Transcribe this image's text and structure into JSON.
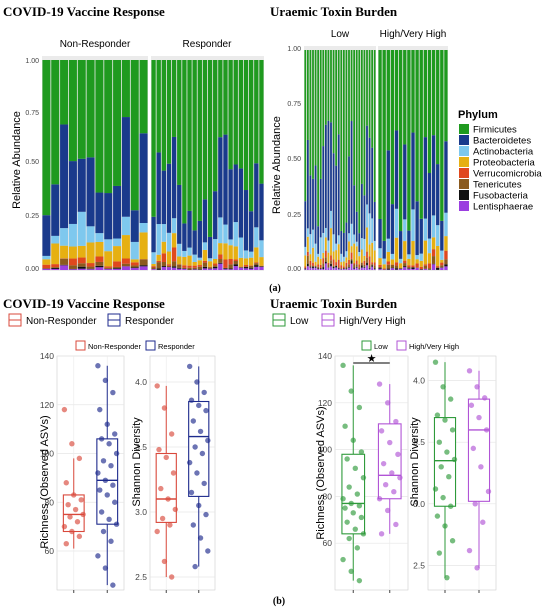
{
  "panel_a": {
    "left_title": "COVID-19 Vaccine Response",
    "right_title": "Uraemic Toxin Burden",
    "caption": "(a)",
    "ylabel": "Relative Abundance",
    "left_facets": [
      "Non-Responder",
      "Responder"
    ],
    "right_facets": [
      "Low",
      "High/Very High"
    ],
    "left_yticks": [
      "0.00",
      "0.25",
      "0.50",
      "0.75",
      "1.00"
    ],
    "right_yticks": [
      "0.00",
      "0.25",
      "0.50",
      "0.75",
      "1.00"
    ],
    "legend_title": "Phylum"
  },
  "panel_b": {
    "left_title": "COVID-19 Vaccine Response",
    "right_title": "Uraemic Toxin Burden",
    "caption": "(b)",
    "left_legend": [
      "Non-Responder",
      "Responder"
    ],
    "right_legend": [
      "Low",
      "High/Very High"
    ],
    "richness_label": "Richness (Observed ASVs)",
    "shannon_label": "Shannon Diversity",
    "richness_ticks": [
      "60",
      "80",
      "100",
      "120",
      "140"
    ],
    "shannon_ticks": [
      "2.5",
      "3.0",
      "3.5",
      "4.0"
    ],
    "star": "★"
  },
  "colors": {
    "non_responder": "#d9483b",
    "responder": "#1d2a8c",
    "low": "#2e9a3a",
    "high": "#b154d6"
  },
  "chart_data": [
    {
      "type": "bar",
      "stacked": true,
      "title": "COVID-19 Vaccine Response",
      "ylabel": "Relative Abundance",
      "ylim": [
        0,
        1
      ],
      "facets": [
        "Non-Responder",
        "Responder"
      ],
      "bars_per_facet": [
        12,
        22
      ],
      "series": [
        {
          "name": "Firmicutes",
          "color": "#1f9a1f"
        },
        {
          "name": "Bacteroidetes",
          "color": "#1a3a8c"
        },
        {
          "name": "Actinobacteria",
          "color": "#7ec8ee"
        },
        {
          "name": "Proteobacteria",
          "color": "#e6b012"
        },
        {
          "name": "Verrucomicrobia",
          "color": "#e0481e"
        },
        {
          "name": "Tenericutes",
          "color": "#8b5a1e"
        },
        {
          "name": "Fusobacteria",
          "color": "#111111"
        },
        {
          "name": "Lentisphaerae",
          "color": "#9b3fe0"
        }
      ],
      "legend": "right"
    },
    {
      "type": "bar",
      "stacked": true,
      "title": "Uraemic Toxin Burden",
      "ylabel": "Relative Abundance",
      "ylim": [
        0,
        1
      ],
      "facets": [
        "Low",
        "High/Very High"
      ],
      "bars_per_facet": [
        28,
        17
      ]
    },
    {
      "type": "boxplot",
      "title": "COVID-19 Vaccine Response",
      "ylabel": "Richness (Observed ASVs)",
      "groups": [
        {
          "name": "Non-Responder",
          "q1": 68,
          "median": 75,
          "q3": 83,
          "whisker_low": 61,
          "whisker_high": 98,
          "points": [
            118,
            104,
            98,
            88,
            83,
            81,
            79,
            77,
            75,
            74,
            72,
            70,
            68,
            66,
            63
          ]
        },
        {
          "name": "Responder",
          "q1": 71,
          "median": 89,
          "q3": 106,
          "whisker_low": 46,
          "whisker_high": 136,
          "points": [
            136,
            130,
            125,
            118,
            112,
            108,
            106,
            104,
            100,
            97,
            95,
            92,
            89,
            87,
            85,
            83,
            80,
            76,
            73,
            71,
            68,
            64,
            58,
            53,
            46
          ]
        }
      ],
      "ylim": [
        44,
        140
      ]
    },
    {
      "type": "boxplot",
      "title": "COVID-19 Vaccine Response",
      "ylabel": "Shannon Diversity",
      "groups": [
        {
          "name": "Non-Responder",
          "q1": 2.92,
          "median": 3.1,
          "q3": 3.45,
          "whisker_low": 2.5,
          "whisker_high": 3.97,
          "points": [
            3.97,
            3.8,
            3.6,
            3.48,
            3.42,
            3.3,
            3.18,
            3.1,
            3.02,
            2.95,
            2.9,
            2.85,
            2.62,
            2.5
          ]
        },
        {
          "name": "Responder",
          "q1": 3.12,
          "median": 3.58,
          "q3": 3.85,
          "whisker_low": 2.58,
          "whisker_high": 4.12,
          "points": [
            4.12,
            4.0,
            3.92,
            3.86,
            3.82,
            3.78,
            3.7,
            3.62,
            3.55,
            3.5,
            3.45,
            3.38,
            3.3,
            3.22,
            3.15,
            3.05,
            2.98,
            2.9,
            2.8,
            2.7,
            2.58
          ]
        }
      ],
      "ylim": [
        2.4,
        4.2
      ]
    },
    {
      "type": "boxplot",
      "title": "Uraemic Toxin Burden",
      "ylabel": "Richness (Observed ASVs)",
      "significance": "★",
      "groups": [
        {
          "name": "Low",
          "q1": 64,
          "median": 77,
          "q3": 98,
          "whisker_low": 44,
          "whisker_high": 136,
          "points": [
            136,
            125,
            118,
            110,
            104,
            99,
            96,
            92,
            88,
            84,
            81,
            79,
            77,
            76,
            75,
            73,
            71,
            69,
            66,
            64,
            62,
            58,
            53,
            48,
            44
          ]
        },
        {
          "name": "High/Very High",
          "q1": 79,
          "median": 89,
          "q3": 111,
          "whisker_low": 64,
          "whisker_high": 128,
          "points": [
            128,
            120,
            112,
            108,
            103,
            98,
            94,
            90,
            88,
            85,
            82,
            79,
            74,
            68,
            64
          ]
        }
      ],
      "ylim": [
        40,
        140
      ]
    },
    {
      "type": "boxplot",
      "title": "Uraemic Toxin Burden",
      "ylabel": "Shannon Diversity",
      "groups": [
        {
          "name": "Low",
          "q1": 2.98,
          "median": 3.35,
          "q3": 3.7,
          "whisker_low": 2.4,
          "whisker_high": 4.15,
          "points": [
            4.15,
            3.95,
            3.85,
            3.72,
            3.68,
            3.6,
            3.5,
            3.42,
            3.36,
            3.3,
            3.22,
            3.12,
            3.05,
            2.98,
            2.9,
            2.82,
            2.7,
            2.6,
            2.4
          ]
        },
        {
          "name": "High/Very High",
          "q1": 3.02,
          "median": 3.6,
          "q3": 3.85,
          "whisker_low": 2.48,
          "whisker_high": 4.08,
          "points": [
            4.08,
            3.95,
            3.86,
            3.8,
            3.7,
            3.6,
            3.45,
            3.3,
            3.1,
            3.0,
            2.85,
            2.62,
            2.48
          ]
        }
      ],
      "ylim": [
        2.3,
        4.2
      ]
    }
  ]
}
